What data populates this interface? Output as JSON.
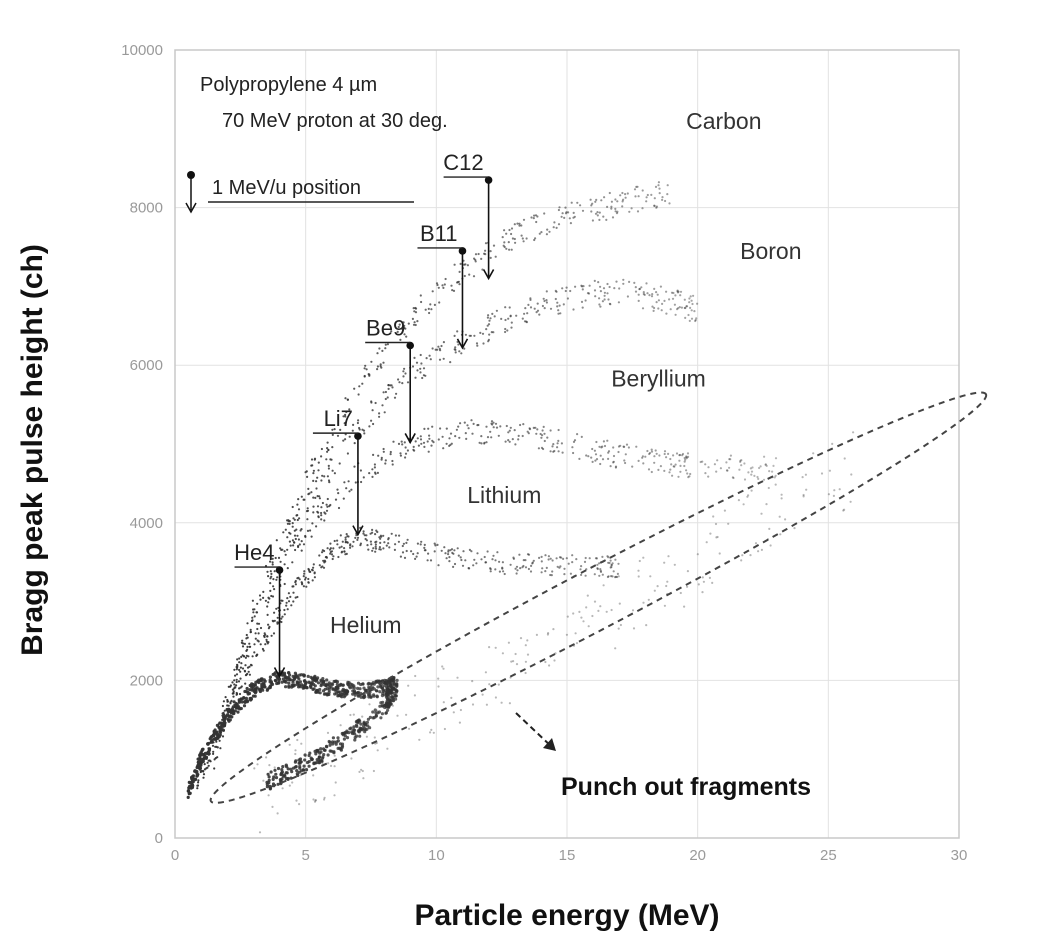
{
  "chart_data": {
    "type": "scatter",
    "title": "",
    "xlabel": "Particle energy (MeV)",
    "ylabel": "Bragg peak pulse height (ch)",
    "xlim": [
      0,
      30
    ],
    "ylim": [
      0,
      10000
    ],
    "x_ticks": [
      "0",
      "5",
      "10",
      "15",
      "20",
      "25",
      "30"
    ],
    "y_ticks": [
      "0",
      "2000",
      "4000",
      "6000",
      "8000",
      "10000"
    ],
    "grid": true,
    "annotations": {
      "target": "Polypropylene 4 µm",
      "beam": "70 MeV proton at 30 deg.",
      "legend_marker": "1 MeV/u position",
      "punch_out": "Punch out fragments"
    },
    "regions": [
      {
        "label": "Carbon",
        "x": 21,
        "y": 9000
      },
      {
        "label": "Boron",
        "x": 22.8,
        "y": 7350
      },
      {
        "label": "Beryllium",
        "x": 18.5,
        "y": 5730
      },
      {
        "label": "Lithium",
        "x": 12.6,
        "y": 4250
      },
      {
        "label": "Helium",
        "x": 7.3,
        "y": 2600
      }
    ],
    "markers": [
      {
        "label": "He4",
        "x": 4.0,
        "y_top": 3400,
        "y_bottom": 2050
      },
      {
        "label": "Li7",
        "x": 7.0,
        "y_top": 5100,
        "y_bottom": 3850
      },
      {
        "label": "Be9",
        "x": 9.0,
        "y_top": 6250,
        "y_bottom": 5020
      },
      {
        "label": "B11",
        "x": 11.0,
        "y_top": 7450,
        "y_bottom": 6220
      },
      {
        "label": "C12",
        "x": 12.0,
        "y_top": 8350,
        "y_bottom": 7100
      }
    ],
    "series": [
      {
        "name": "Helium",
        "band": 100,
        "points": [
          [
            0.5,
            600
          ],
          [
            1,
            1000
          ],
          [
            2,
            1550
          ],
          [
            3,
            1880
          ],
          [
            4,
            2030
          ],
          [
            5,
            1980
          ],
          [
            6,
            1900
          ],
          [
            7,
            1870
          ],
          [
            8,
            1900
          ],
          [
            8.4,
            1950
          ]
        ]
      },
      {
        "name": "Lithium",
        "band": 140,
        "points": [
          [
            0.8,
            700
          ],
          [
            2,
            1600
          ],
          [
            3,
            2300
          ],
          [
            4,
            2850
          ],
          [
            5,
            3300
          ],
          [
            6,
            3650
          ],
          [
            7,
            3800
          ],
          [
            8,
            3750
          ],
          [
            10,
            3600
          ],
          [
            12,
            3500
          ],
          [
            14,
            3450
          ],
          [
            16,
            3450
          ],
          [
            17,
            3430
          ]
        ]
      },
      {
        "name": "Beryllium",
        "band": 160,
        "points": [
          [
            1,
            800
          ],
          [
            3,
            2600
          ],
          [
            5,
            3900
          ],
          [
            7,
            4600
          ],
          [
            9,
            5000
          ],
          [
            11,
            5150
          ],
          [
            13,
            5150
          ],
          [
            15,
            5000
          ],
          [
            17,
            4850
          ],
          [
            19,
            4750
          ],
          [
            21,
            4700
          ],
          [
            23,
            4700
          ]
        ]
      },
      {
        "name": "Boron",
        "band": 170,
        "points": [
          [
            1.2,
            900
          ],
          [
            3,
            2700
          ],
          [
            5,
            4200
          ],
          [
            7,
            5200
          ],
          [
            9,
            5900
          ],
          [
            11,
            6300
          ],
          [
            13,
            6650
          ],
          [
            15,
            6850
          ],
          [
            17,
            6950
          ],
          [
            19,
            6800
          ],
          [
            20,
            6700
          ]
        ]
      },
      {
        "name": "Carbon",
        "band": 170,
        "points": [
          [
            1.5,
            1000
          ],
          [
            3,
            2900
          ],
          [
            5,
            4500
          ],
          [
            7,
            5700
          ],
          [
            9,
            6600
          ],
          [
            11,
            7200
          ],
          [
            13,
            7650
          ],
          [
            15,
            7900
          ],
          [
            17,
            8050
          ],
          [
            19,
            8200
          ]
        ]
      },
      {
        "name": "Helium return",
        "band": 110,
        "points": [
          [
            3.5,
            700
          ],
          [
            5,
            950
          ],
          [
            6.5,
            1250
          ],
          [
            8,
            1650
          ],
          [
            8.5,
            1900
          ]
        ]
      },
      {
        "name": "Punch out",
        "band": 500,
        "points": [
          [
            3,
            500
          ],
          [
            6,
            1000
          ],
          [
            10,
            1700
          ],
          [
            14,
            2400
          ],
          [
            18,
            3100
          ],
          [
            22,
            3900
          ],
          [
            26,
            4700
          ]
        ]
      }
    ],
    "punch_out_region": {
      "center": [
        16.2,
        3050
      ],
      "semi_axis_data": 14.8,
      "width_data": 600
    }
  }
}
